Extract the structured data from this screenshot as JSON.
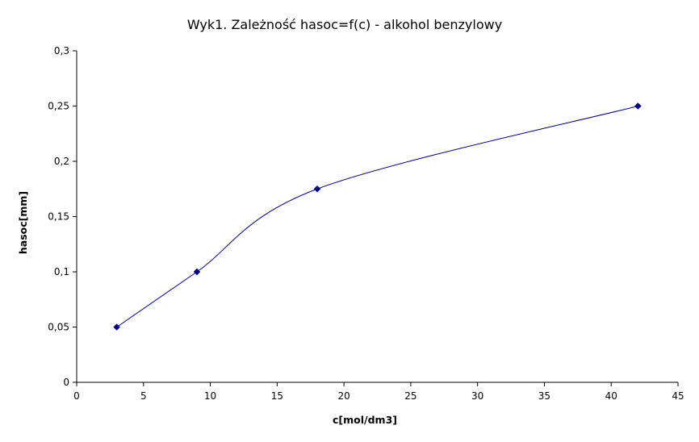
{
  "chart_data": {
    "type": "scatter",
    "title": "Wyk1. Zależność hasoc=f(c) - alkohol benzylowy",
    "xlabel": "c[mol/dm3]",
    "ylabel": "hasoc[mm]",
    "xlim": [
      0,
      45
    ],
    "ylim": [
      0,
      0.3
    ],
    "x_ticks": [
      "0",
      "5",
      "10",
      "15",
      "20",
      "25",
      "30",
      "35",
      "40",
      "45"
    ],
    "y_ticks": [
      "0",
      "0,05",
      "0,1",
      "0,15",
      "0,2",
      "0,25",
      "0,3"
    ],
    "grid": false,
    "legend": "none",
    "series": [
      {
        "x": [
          3,
          9,
          18,
          42
        ],
        "y": [
          0.05,
          0.1,
          0.175,
          0.25
        ],
        "color": "#000080",
        "marker": "diamond",
        "line": "smooth"
      }
    ]
  }
}
